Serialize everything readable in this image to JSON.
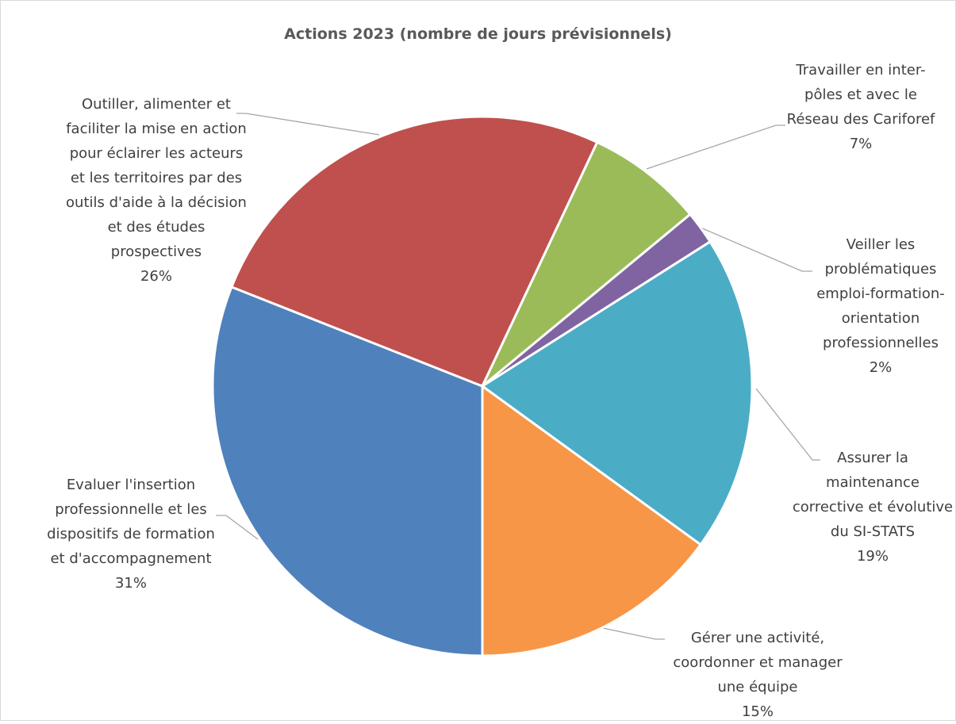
{
  "chart_data": {
    "type": "pie",
    "title": "Actions 2023 (nombre de jours prévisionnels)",
    "categories": [
      "Evaluer l'insertion professionnelle et les dispositifs de formation et d'accompagnement",
      "Outiller, alimenter et faciliter la mise en action pour éclairer les acteurs et les territoires par des outils d'aide à la décision et des études prospectives",
      "Travailler en inter-pôles et avec le Réseau des Cariforef",
      "Veiller les problématiques emploi-formation-orientation professionnelles",
      "Assurer la maintenance corrective et évolutive du SI-STATS",
      "Gérer une activité, coordonner et manager une équipe"
    ],
    "values": [
      31,
      26,
      7,
      2,
      19,
      15
    ],
    "value_labels": [
      "31%",
      "26%",
      "7%",
      "2%",
      "19%",
      "15%"
    ],
    "colors": [
      "#4f81bd",
      "#c0504d",
      "#9bbb59",
      "#8064a2",
      "#4bacc6",
      "#f79646"
    ]
  }
}
